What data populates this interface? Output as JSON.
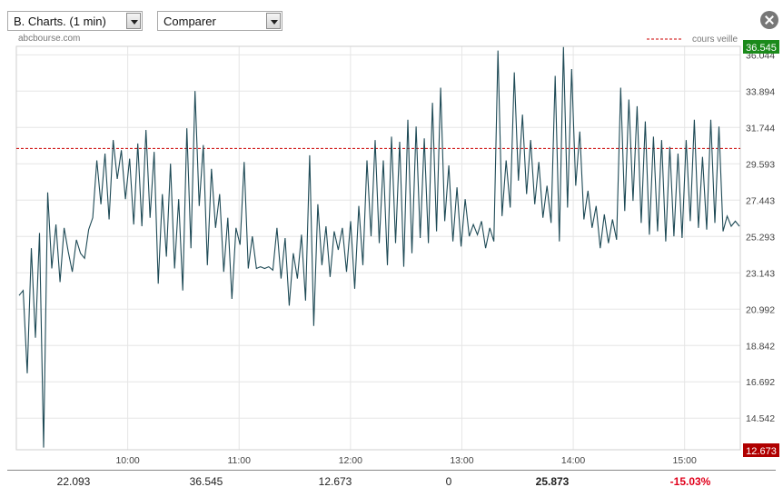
{
  "controls": {
    "chart_select": "B. Charts. (1 min)",
    "compare_select": "Comparer"
  },
  "source": "abcbourse.com",
  "colors": {
    "line": "#1e4a56",
    "reference": "#cc0000",
    "last_badge": "#1b8a1b",
    "low_badge": "#b00000",
    "negative": "#e0001b"
  },
  "chart_data": {
    "type": "line",
    "x_ticks": [
      "10:00",
      "11:00",
      "12:00",
      "13:00",
      "14:00",
      "15:00"
    ],
    "y_ticks": [
      14.542,
      16.692,
      18.842,
      20.992,
      23.143,
      25.293,
      27.443,
      29.593,
      31.744,
      33.894,
      36.044
    ],
    "ylim": [
      12.673,
      36.545
    ],
    "x_range": [
      "09:00",
      "15:30"
    ],
    "legend": "cours veille",
    "reference_value": 30.5,
    "badges": {
      "high": "36.545",
      "low": "12.673"
    },
    "series": [
      {
        "values": [
          21.8,
          22.1,
          17.2,
          24.6,
          19.3,
          25.5,
          12.8,
          27.9,
          23.4,
          26.0,
          22.6,
          25.8,
          24.4,
          23.2,
          25.1,
          24.3,
          24.0,
          25.7,
          26.4,
          29.8,
          27.2,
          30.2,
          26.3,
          31.0,
          28.7,
          30.4,
          27.5,
          29.9,
          26.0,
          30.8,
          25.9,
          31.6,
          26.4,
          30.3,
          22.5,
          27.8,
          24.1,
          29.6,
          23.4,
          27.5,
          22.1,
          31.7,
          24.6,
          33.9,
          27.1,
          30.7,
          23.6,
          29.3,
          25.8,
          27.8,
          23.2,
          26.4,
          21.6,
          25.8,
          24.8,
          29.7,
          23.4,
          25.3,
          23.4,
          23.5,
          23.4,
          23.5,
          23.3,
          25.8,
          22.8,
          25.2,
          21.2,
          24.3,
          22.8,
          25.4,
          21.5,
          30.1,
          20.0,
          27.2,
          23.6,
          25.9,
          22.9,
          25.6,
          24.5,
          25.8,
          23.2,
          26.2,
          22.2,
          27.1,
          23.6,
          29.8,
          25.3,
          31.0,
          24.9,
          29.8,
          23.6,
          31.2,
          24.9,
          30.9,
          23.5,
          32.2,
          24.3,
          31.8,
          25.2,
          31.1,
          24.9,
          33.2,
          25.6,
          34.1,
          26.2,
          29.5,
          25.0,
          28.2,
          24.7,
          27.5,
          25.3,
          26.0,
          25.4,
          26.2,
          24.6,
          25.8,
          25.0,
          36.3,
          26.5,
          29.8,
          27.0,
          35.0,
          28.6,
          32.5,
          27.8,
          31.0,
          27.2,
          29.7,
          26.4,
          28.3,
          26.1,
          34.8,
          25.0,
          36.5,
          27.0,
          35.2,
          28.3,
          31.5,
          26.3,
          28.0,
          25.8,
          27.1,
          24.6,
          26.6,
          24.9,
          26.3,
          25.1,
          34.1,
          26.8,
          33.4,
          27.4,
          33.0,
          26.1,
          32.1,
          25.4,
          31.2,
          25.6,
          31.0,
          25.0,
          30.6,
          25.3,
          30.2,
          25.2,
          31.0,
          26.2,
          32.2,
          25.8,
          30.0,
          25.7,
          32.2,
          26.1,
          31.8,
          25.6,
          26.5,
          25.9,
          26.2,
          25.9
        ]
      }
    ],
    "summary": {
      "open": "22.093",
      "high": "36.545",
      "low": "12.673",
      "volume": "0",
      "last": "25.873",
      "change": "-15.03%"
    }
  }
}
